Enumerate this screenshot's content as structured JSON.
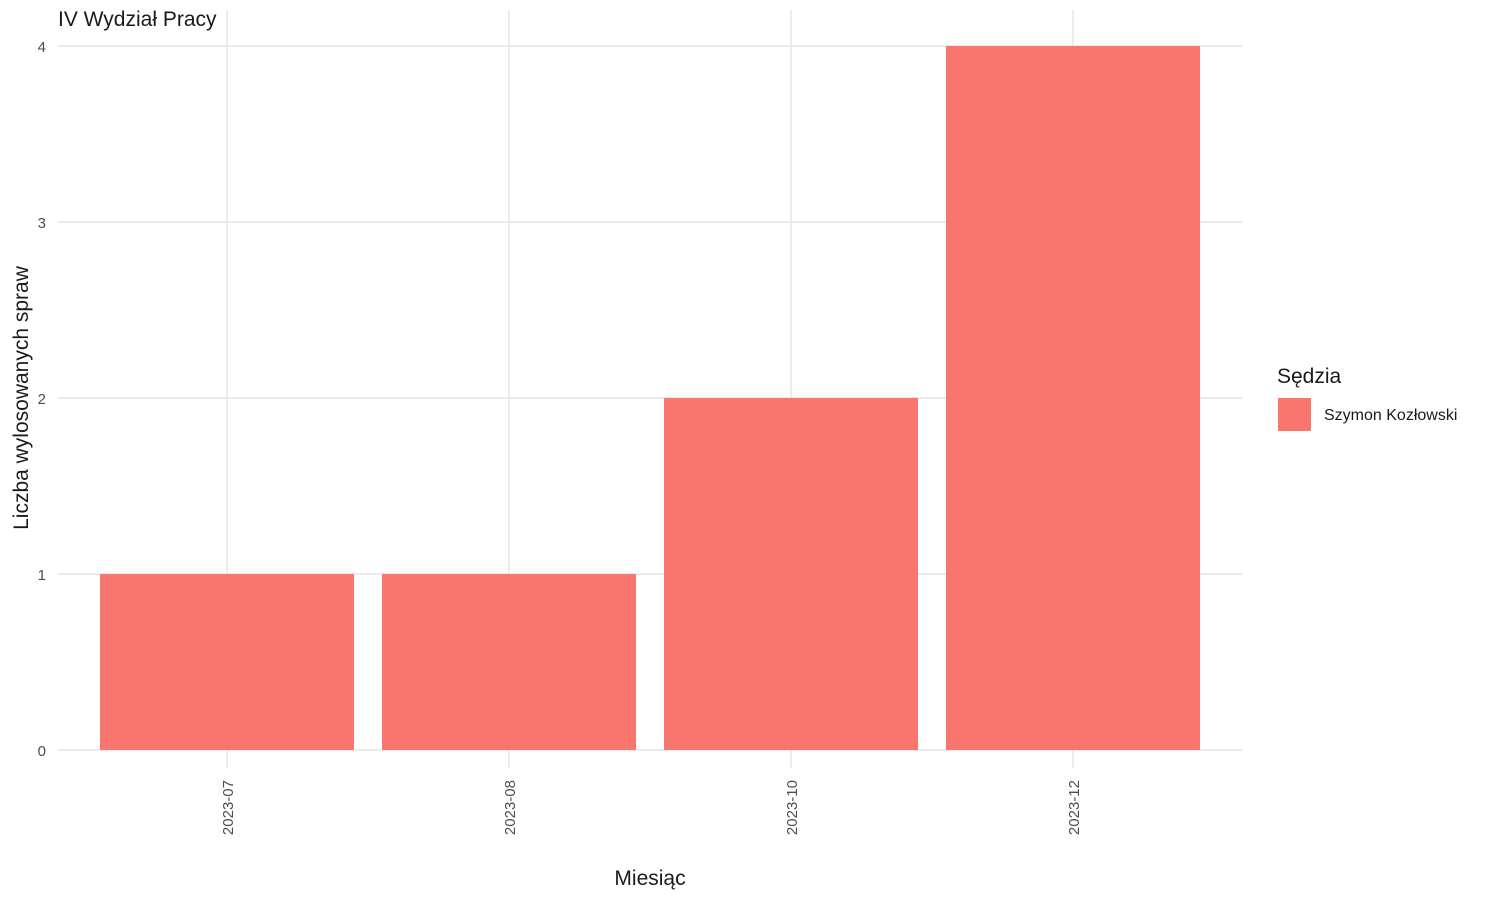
{
  "chart_data": {
    "type": "bar",
    "title": "IV Wydział Pracy",
    "xlabel": "Miesiąc",
    "ylabel": "Liczba wylosowanych spraw",
    "categories": [
      "2023-07",
      "2023-08",
      "2023-10",
      "2023-12"
    ],
    "series": [
      {
        "name": "Szymon Kozłowski",
        "values": [
          1,
          1,
          2,
          4
        ],
        "color": "#F8766D"
      }
    ],
    "ylim": [
      0,
      4
    ],
    "yticks": [
      0,
      1,
      2,
      3,
      4
    ],
    "grid": true,
    "legend": {
      "title": "Sędzia",
      "placement": "right"
    }
  }
}
